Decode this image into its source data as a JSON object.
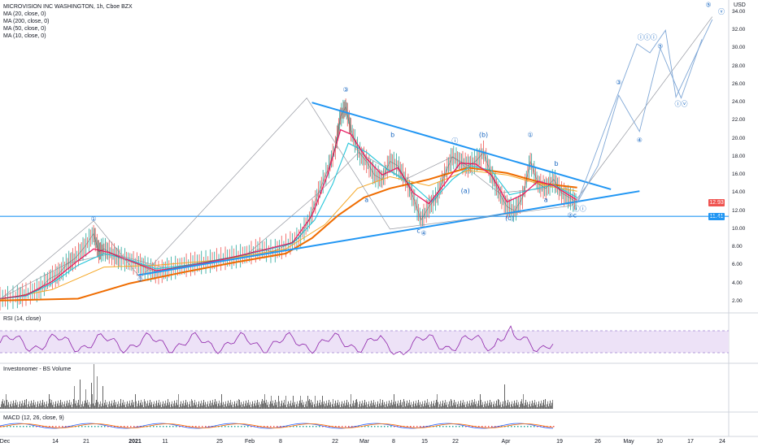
{
  "header": {
    "title": "MICROVISION INC WASHINGTON, 1h, Cboe BZX",
    "indicators": [
      "MA (20, close, 0)",
      "MA (200, close, 0)",
      "MA (50, close, 0)",
      "MA (10, close, 0)"
    ],
    "currency": "USD"
  },
  "panes": {
    "rsi_label": "RSI (14, close)",
    "volume_label": "Investonomer - BS Volume",
    "macd_label": "MACD (12, 26, close, 9)"
  },
  "badges": {
    "last_price": "12.93",
    "support": "11.41"
  },
  "colors": {
    "price": "#2196f3",
    "ma10": "#e91e63",
    "ma20": "#26c6da",
    "ma200": "#ef6c00",
    "rsi": "#8e24aa",
    "up": "#26a69a",
    "down": "#ef5350"
  },
  "chart_data": {
    "type": "line",
    "title": "MICROVISION INC WASHINGTON, 1h, Cboe BZX",
    "y_axis": {
      "ticks": [
        "34.00",
        "32.00",
        "30.00",
        "28.00",
        "26.00",
        "24.00",
        "22.00",
        "20.00",
        "18.00",
        "16.00",
        "14.00",
        "12.00",
        "10.00",
        "8.00",
        "6.00",
        "4.00",
        "2.00"
      ],
      "ylim": [
        1,
        35
      ]
    },
    "x_axis": {
      "ticks": [
        "Dec",
        "14",
        "21",
        "2021",
        "11",
        "25",
        "Feb",
        "8",
        "22",
        "Mar",
        "8",
        "15",
        "22",
        "Apr",
        "19",
        "26",
        "May",
        "10",
        "17",
        "24"
      ]
    },
    "price_path": [
      [
        0,
        2.3
      ],
      [
        12,
        2.5
      ],
      [
        20,
        2.8
      ],
      [
        30,
        3.3
      ],
      [
        38,
        4.5
      ],
      [
        45,
        5.0
      ],
      [
        52,
        6.2
      ],
      [
        58,
        6.8
      ],
      [
        65,
        8.0
      ],
      [
        72,
        9.5
      ],
      [
        76,
        7.5
      ],
      [
        80,
        7.8
      ],
      [
        86,
        7.3
      ],
      [
        92,
        6.8
      ],
      [
        100,
        6.4
      ],
      [
        108,
        6.0
      ],
      [
        115,
        5.5
      ],
      [
        122,
        5.2
      ],
      [
        130,
        5.6
      ],
      [
        140,
        5.9
      ],
      [
        150,
        6.2
      ],
      [
        160,
        6.4
      ],
      [
        170,
        6.7
      ],
      [
        180,
        6.9
      ],
      [
        190,
        7.2
      ],
      [
        200,
        7.8
      ],
      [
        210,
        7.5
      ],
      [
        220,
        8.2
      ],
      [
        230,
        9.0
      ],
      [
        238,
        11.0
      ],
      [
        245,
        14.0
      ],
      [
        252,
        16.5
      ],
      [
        258,
        19.0
      ],
      [
        262,
        22.5
      ],
      [
        266,
        23.5
      ],
      [
        270,
        21.0
      ],
      [
        276,
        18.5
      ],
      [
        282,
        17.5
      ],
      [
        288,
        16.0
      ],
      [
        294,
        15.5
      ],
      [
        300,
        17.5
      ],
      [
        306,
        17.0
      ],
      [
        312,
        15.5
      ],
      [
        318,
        13.5
      ],
      [
        324,
        11.0
      ],
      [
        330,
        12.5
      ],
      [
        336,
        13.5
      ],
      [
        342,
        16.0
      ],
      [
        348,
        18.0
      ],
      [
        354,
        17.5
      ],
      [
        360,
        17.0
      ],
      [
        366,
        17.5
      ],
      [
        372,
        18.5
      ],
      [
        378,
        16.0
      ],
      [
        384,
        14.0
      ],
      [
        390,
        12.5
      ],
      [
        396,
        12.0
      ],
      [
        402,
        13.5
      ],
      [
        408,
        17.5
      ],
      [
        414,
        15.0
      ],
      [
        420,
        14.5
      ],
      [
        426,
        15.5
      ],
      [
        432,
        14.0
      ],
      [
        438,
        13.5
      ],
      [
        444,
        12.9
      ]
    ],
    "ma10": [
      [
        0,
        2.3
      ],
      [
        20,
        2.7
      ],
      [
        40,
        4.2
      ],
      [
        60,
        6.5
      ],
      [
        72,
        7.8
      ],
      [
        84,
        7.4
      ],
      [
        100,
        6.5
      ],
      [
        120,
        5.4
      ],
      [
        140,
        5.8
      ],
      [
        170,
        6.6
      ],
      [
        200,
        7.6
      ],
      [
        225,
        8.5
      ],
      [
        240,
        11.5
      ],
      [
        252,
        16.0
      ],
      [
        262,
        21.0
      ],
      [
        270,
        20.5
      ],
      [
        282,
        17.8
      ],
      [
        294,
        16.0
      ],
      [
        306,
        16.8
      ],
      [
        318,
        14.0
      ],
      [
        330,
        12.8
      ],
      [
        342,
        15.0
      ],
      [
        354,
        17.3
      ],
      [
        366,
        17.2
      ],
      [
        378,
        16.0
      ],
      [
        390,
        13.0
      ],
      [
        402,
        13.8
      ],
      [
        414,
        15.3
      ],
      [
        426,
        14.8
      ],
      [
        444,
        13.2
      ]
    ],
    "ma20": [
      [
        0,
        2.3
      ],
      [
        20,
        2.6
      ],
      [
        40,
        4.0
      ],
      [
        60,
        6.0
      ],
      [
        80,
        7.3
      ],
      [
        100,
        6.6
      ],
      [
        120,
        5.6
      ],
      [
        150,
        6.1
      ],
      [
        190,
        7.2
      ],
      [
        225,
        8.4
      ],
      [
        242,
        11.0
      ],
      [
        256,
        15.0
      ],
      [
        268,
        19.5
      ],
      [
        282,
        18.5
      ],
      [
        298,
        16.6
      ],
      [
        318,
        14.8
      ],
      [
        332,
        13.0
      ],
      [
        348,
        15.5
      ],
      [
        362,
        17.0
      ],
      [
        378,
        16.5
      ],
      [
        392,
        13.8
      ],
      [
        410,
        14.4
      ],
      [
        426,
        14.9
      ],
      [
        444,
        13.5
      ]
    ],
    "ma50": [
      [
        0,
        2.2
      ],
      [
        40,
        3.3
      ],
      [
        80,
        5.8
      ],
      [
        120,
        6.0
      ],
      [
        170,
        6.6
      ],
      [
        220,
        7.8
      ],
      [
        250,
        10.5
      ],
      [
        275,
        14.5
      ],
      [
        300,
        15.8
      ],
      [
        330,
        14.8
      ],
      [
        360,
        16.5
      ],
      [
        390,
        16.0
      ],
      [
        420,
        14.8
      ],
      [
        444,
        14.2
      ]
    ],
    "ma200": [
      [
        0,
        2.1
      ],
      [
        60,
        2.3
      ],
      [
        100,
        4.0
      ],
      [
        140,
        5.2
      ],
      [
        180,
        6.3
      ],
      [
        220,
        7.3
      ],
      [
        240,
        9.0
      ],
      [
        260,
        11.5
      ],
      [
        280,
        13.5
      ],
      [
        300,
        14.5
      ],
      [
        330,
        15.5
      ],
      [
        360,
        16.8
      ],
      [
        390,
        16.2
      ],
      [
        420,
        15.0
      ],
      [
        444,
        14.6
      ]
    ],
    "projection_path": [
      [
        444,
        12.9
      ],
      [
        460,
        17.0
      ],
      [
        476,
        24.8
      ],
      [
        492,
        20.8
      ],
      [
        508,
        30.0
      ],
      [
        524,
        24.5
      ],
      [
        540,
        31.0
      ]
    ],
    "alt_projection_path": [
      [
        444,
        12.9
      ],
      [
        490,
        30.5
      ],
      [
        500,
        29.5
      ],
      [
        512,
        32.0
      ],
      [
        520,
        24.6
      ],
      [
        548,
        33.2
      ]
    ],
    "wave_labels": [
      {
        "text": "①",
        "x": 72,
        "y": 10.9
      },
      {
        "text": "②",
        "x": 108,
        "y": 4.2
      },
      {
        "text": "③",
        "x": 266,
        "y": 25.2
      },
      {
        "text": "④",
        "x": 326,
        "y": 9.3
      },
      {
        "text": "ⓘ",
        "x": 350,
        "y": 19.5
      },
      {
        "text": "(b)",
        "x": 372,
        "y": 20.2
      },
      {
        "text": "(a)",
        "x": 358,
        "y": 14.0
      },
      {
        "text": "(c)",
        "x": 392,
        "y": 11.0
      },
      {
        "text": "①",
        "x": 408,
        "y": 20.2
      },
      {
        "text": "b",
        "x": 302,
        "y": 20.2
      },
      {
        "text": "a",
        "x": 282,
        "y": 13.0
      },
      {
        "text": "c",
        "x": 322,
        "y": 9.6
      },
      {
        "text": "b",
        "x": 428,
        "y": 17.0
      },
      {
        "text": "a",
        "x": 420,
        "y": 13.0
      },
      {
        "text": "②c",
        "x": 440,
        "y": 11.3
      },
      {
        "text": "ⓘⓘ",
        "x": 446,
        "y": 12.0
      },
      {
        "text": "③",
        "x": 476,
        "y": 26.0
      },
      {
        "text": "④",
        "x": 492,
        "y": 19.6
      },
      {
        "text": "ⓘⓘⓘ",
        "x": 498,
        "y": 31.0
      },
      {
        "text": "⑤",
        "x": 508,
        "y": 30.0
      },
      {
        "text": "ⓘⓥ",
        "x": 524,
        "y": 23.6
      },
      {
        "text": "⑤",
        "x": 545,
        "y": 34.6
      },
      {
        "text": "ⓥ",
        "x": 555,
        "y": 33.8
      }
    ]
  }
}
